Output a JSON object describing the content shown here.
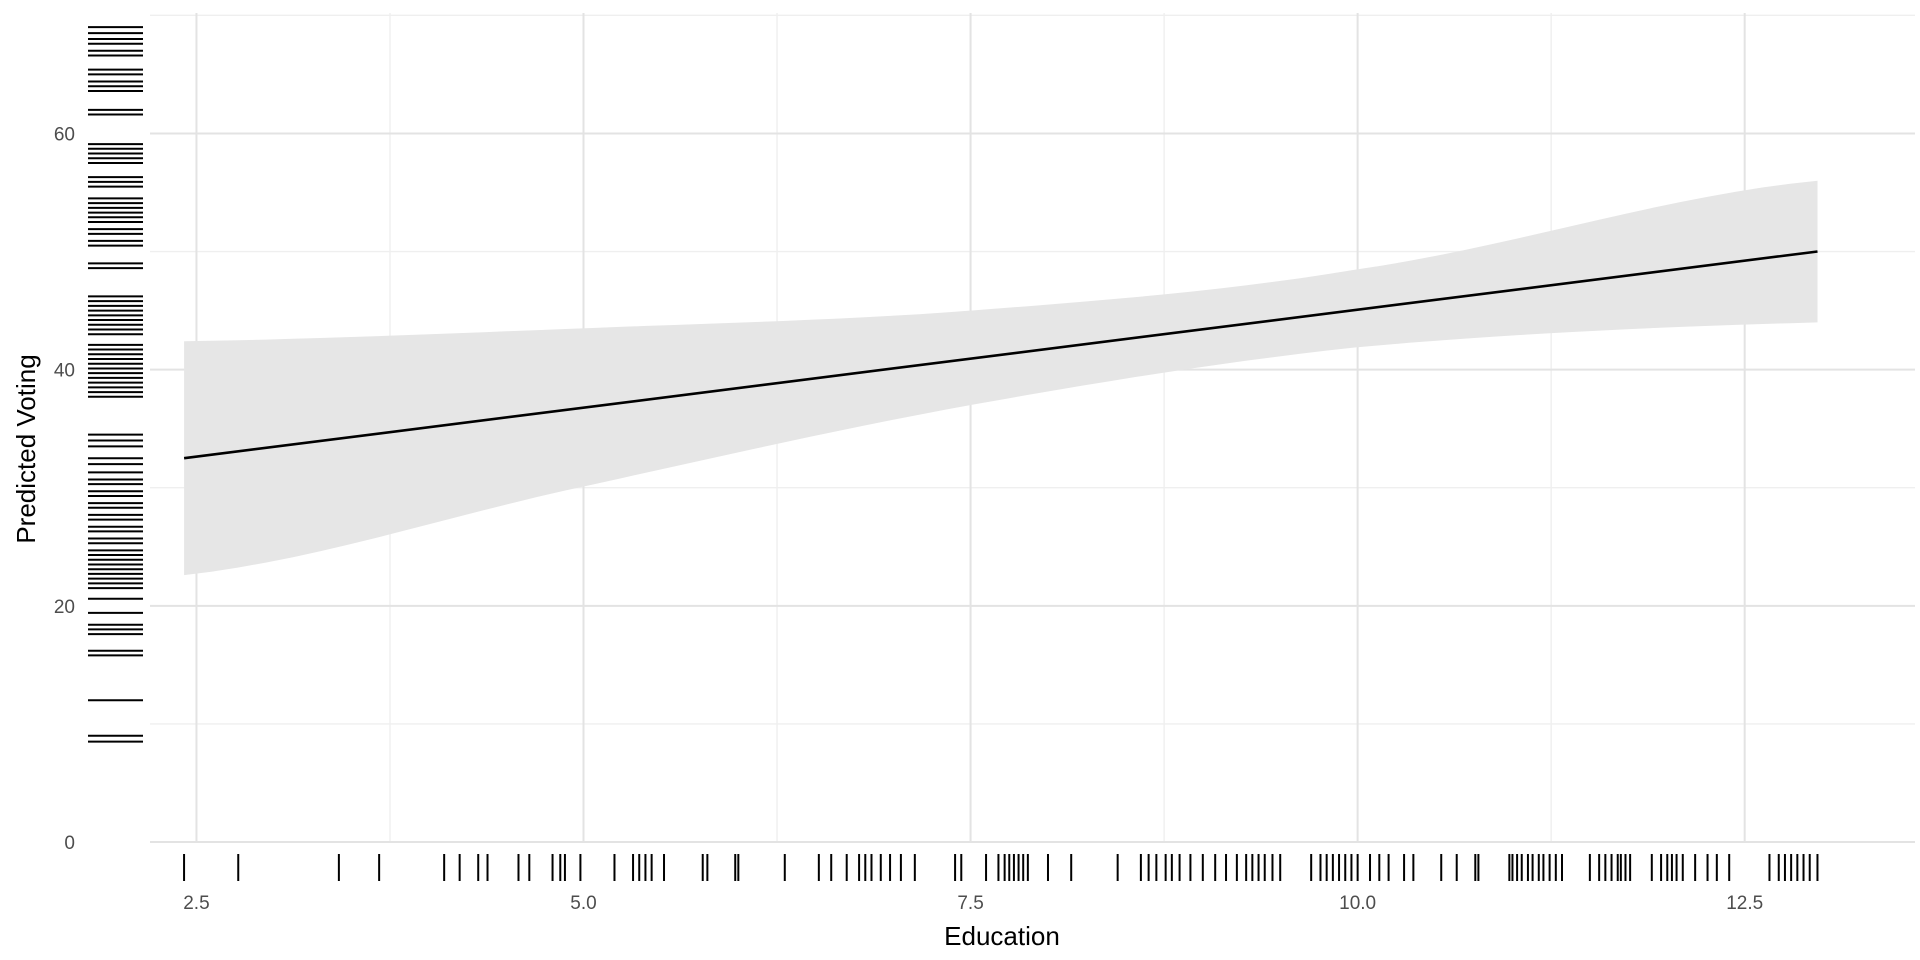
{
  "chart_data": {
    "type": "line",
    "title": "",
    "xlabel": "Education",
    "ylabel": "Predicted Voting",
    "xlim": [
      2.2,
      13.6
    ],
    "ylim": [
      0,
      70.2
    ],
    "x_ticks": [
      2.5,
      5.0,
      7.5,
      10.0,
      12.5
    ],
    "x_tick_labels": [
      "2.5",
      "5.0",
      "7.5",
      "10.0",
      "12.5"
    ],
    "y_ticks": [
      0,
      20,
      40,
      60
    ],
    "y_tick_labels": [
      "0",
      "20",
      "40",
      "60"
    ],
    "grid": true,
    "series": [
      {
        "x": [
          2.42,
          12.97
        ],
        "y": [
          32.5,
          50.0
        ],
        "color": "#000000"
      }
    ],
    "confidence_band": {
      "x": [
        2.42,
        5.0,
        7.5,
        10.0,
        12.97
      ],
      "lower": [
        22.6,
        30.1,
        37.0,
        41.9,
        44.0
      ],
      "upper": [
        42.4,
        43.5,
        45.0,
        48.5,
        56.0
      ],
      "color": "#e6e6e6"
    },
    "rug_x": [
      2.42,
      2.77,
      3.42,
      3.68,
      4.1,
      4.2,
      4.32,
      4.38,
      4.58,
      4.65,
      4.8,
      4.85,
      4.88,
      4.98,
      5.2,
      5.32,
      5.36,
      5.4,
      5.44,
      5.52,
      5.77,
      5.8,
      5.98,
      6.0,
      6.3,
      6.52,
      6.6,
      6.7,
      6.78,
      6.82,
      6.86,
      6.92,
      6.98,
      7.05,
      7.14,
      7.4,
      7.44,
      7.6,
      7.68,
      7.72,
      7.75,
      7.78,
      7.81,
      7.84,
      7.87,
      8.0,
      8.15,
      8.45,
      8.6,
      8.65,
      8.7,
      8.76,
      8.8,
      8.85,
      8.92,
      9.0,
      9.08,
      9.15,
      9.22,
      9.28,
      9.32,
      9.36,
      9.4,
      9.45,
      9.5,
      9.7,
      9.76,
      9.8,
      9.84,
      9.88,
      9.92,
      9.96,
      10.0,
      10.08,
      10.14,
      10.2,
      10.3,
      10.36,
      10.54,
      10.64,
      10.76,
      10.78,
      10.98,
      11.0,
      11.03,
      11.06,
      11.1,
      11.13,
      11.17,
      11.2,
      11.24,
      11.28,
      11.32,
      11.5,
      11.56,
      11.6,
      11.64,
      11.68,
      11.7,
      11.73,
      11.76,
      11.9,
      11.96,
      12.0,
      12.03,
      12.06,
      12.1,
      12.18,
      12.26,
      12.32,
      12.4,
      12.66,
      12.72,
      12.76,
      12.8,
      12.84,
      12.88,
      12.92,
      12.97
    ],
    "rug_y": [
      8.5,
      9.0,
      12.0,
      15.8,
      16.2,
      17.6,
      18.0,
      18.4,
      19.4,
      20.6,
      21.5,
      21.9,
      22.3,
      22.7,
      23.1,
      23.5,
      23.9,
      24.3,
      24.7,
      25.3,
      25.7,
      26.3,
      26.7,
      27.3,
      27.7,
      28.3,
      28.7,
      29.3,
      29.7,
      30.3,
      30.7,
      31.3,
      32.0,
      32.5,
      33.5,
      34.0,
      34.5,
      37.7,
      38.1,
      38.5,
      38.9,
      39.3,
      39.7,
      40.1,
      40.5,
      40.9,
      41.3,
      41.7,
      42.1,
      43.0,
      43.4,
      43.8,
      44.2,
      44.6,
      45.0,
      45.4,
      45.8,
      46.2,
      48.6,
      49.0,
      50.5,
      50.9,
      51.5,
      51.9,
      52.5,
      52.9,
      53.3,
      53.7,
      54.1,
      54.5,
      55.5,
      55.9,
      56.3,
      57.5,
      57.9,
      58.3,
      58.7,
      59.1,
      61.6,
      62.0,
      63.6,
      64.0,
      64.4,
      65.0,
      65.4,
      66.6,
      67.0,
      67.6,
      68.0,
      68.5,
      69.0
    ]
  }
}
